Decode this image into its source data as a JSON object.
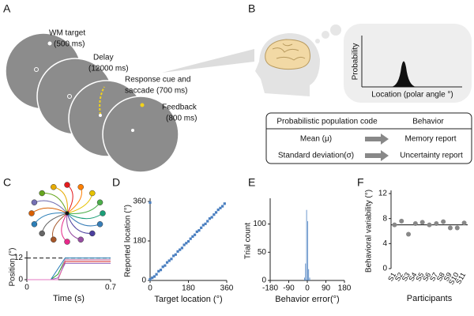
{
  "figure": {
    "panel_labels": [
      "A",
      "B",
      "C",
      "D",
      "E",
      "F"
    ],
    "a_steps": [
      {
        "name": "WM target",
        "duration": "(500 ms)"
      },
      {
        "name": "Delay",
        "duration": "(12000 ms)"
      },
      {
        "name": "Response cue and",
        "duration": "saccade (700 ms)"
      },
      {
        "name": "Feedback",
        "duration": "(800 ms)"
      }
    ],
    "b_plot": {
      "ylabel": "Probability",
      "xlabel": "Location (polar angle °)"
    },
    "b_table": {
      "header": [
        "Probabilistic population code",
        "Behavior"
      ],
      "rows": [
        [
          "Mean (μ)",
          "Memory report"
        ],
        [
          "Standard deviation(σ)",
          "Uncertainty report"
        ]
      ]
    }
  },
  "chart_data": [
    {
      "type": "line",
      "xlabel": "Time (s)",
      "ylabel": "Position (°)",
      "x": [
        0,
        0.2,
        0.26,
        0.32,
        0.7
      ],
      "xlim": [
        0,
        0.7
      ],
      "xticks": [
        0,
        0.7
      ],
      "ylim": [
        0,
        14
      ],
      "yticks": [
        0,
        12
      ],
      "series": [
        {
          "color": "#d62728",
          "values": [
            0,
            0,
            0,
            10,
            10
          ]
        },
        {
          "color": "#2ca02c",
          "values": [
            0,
            0,
            3,
            11,
            11
          ]
        },
        {
          "color": "#1f77b4",
          "values": [
            0,
            0,
            6,
            12,
            12
          ]
        },
        {
          "color": "#9467bd",
          "values": [
            0,
            0,
            1,
            9,
            9
          ]
        },
        {
          "color": "#e377c2",
          "values": [
            0,
            0,
            0,
            11,
            11
          ]
        }
      ]
    },
    {
      "type": "scatter",
      "xlabel": "Target location (°)",
      "ylabel": "Reported location (°)",
      "color": "#4a7fc0",
      "x": [
        0,
        0,
        10,
        20,
        30,
        40,
        50,
        60,
        70,
        80,
        90,
        100,
        110,
        120,
        130,
        140,
        150,
        160,
        170,
        180,
        190,
        200,
        210,
        220,
        230,
        240,
        250,
        260,
        270,
        280,
        290,
        300,
        310,
        320,
        330,
        340,
        350
      ],
      "values": [
        355,
        5,
        12,
        18,
        28,
        42,
        48,
        62,
        68,
        82,
        90,
        98,
        112,
        118,
        132,
        140,
        148,
        162,
        170,
        178,
        190,
        200,
        208,
        222,
        228,
        240,
        252,
        258,
        270,
        282,
        288,
        300,
        310,
        322,
        330,
        338,
        350
      ],
      "xlim": [
        0,
        360
      ],
      "xticks": [
        0,
        180,
        360
      ],
      "ylim": [
        0,
        360
      ],
      "yticks": [
        0,
        180,
        360
      ]
    },
    {
      "type": "histogram",
      "xlabel": "Behavior error(°)",
      "ylabel": "Trial count",
      "color": "#4a7fc0",
      "bins": [
        -15,
        -10,
        -5,
        0,
        5,
        10,
        15
      ],
      "values": [
        5,
        30,
        125,
        105,
        20,
        5
      ],
      "xlim": [
        -180,
        180
      ],
      "xticks": [
        -180,
        -90,
        0,
        90,
        180
      ],
      "ylim": [
        0,
        140
      ],
      "yticks": [
        0,
        50,
        100
      ]
    },
    {
      "type": "dot",
      "xlabel": "Participants",
      "ylabel": "Behavioral variability (°)",
      "color": "#888888",
      "categories": [
        "S1",
        "S2",
        "S3",
        "S4",
        "S5",
        "S6",
        "S7",
        "S8",
        "S9",
        "S10",
        "S11"
      ],
      "values": [
        7,
        7.6,
        5.5,
        7.2,
        7.4,
        7,
        7.2,
        7.5,
        6.5,
        6.5,
        7.3
      ],
      "hline": 7,
      "ylim": [
        0,
        12
      ],
      "yticks": [
        0,
        4,
        8,
        12
      ]
    }
  ]
}
